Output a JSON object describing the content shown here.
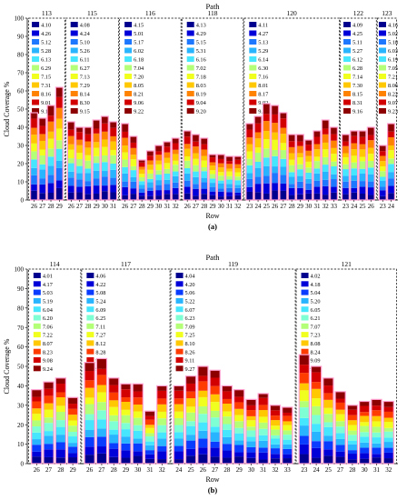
{
  "colors": {
    "levels": [
      "#00008f",
      "#0000d9",
      "#0a3cff",
      "#1e78ff",
      "#28b4ff",
      "#46e6ff",
      "#7fffd4",
      "#b4ff78",
      "#f0ff1e",
      "#ffc800",
      "#ff8200",
      "#ff3c00",
      "#d20000",
      "#8c0000"
    ]
  },
  "chart_data": [
    {
      "type": "bar",
      "stacked": true,
      "panel_label": "(a)",
      "title": "Path",
      "xlabel": "Row",
      "ylabel": "Cloud Coverage %",
      "ylim": [
        0,
        100
      ],
      "yticks": [
        0,
        10,
        20,
        30,
        40,
        50,
        60,
        70,
        80,
        90,
        100
      ],
      "groups": [
        {
          "path": "113",
          "rows": [
            "26",
            "27",
            "28",
            "29"
          ],
          "legend": [
            "4.10",
            "4.26",
            "5.12",
            "5.28",
            "6.13",
            "6.29",
            "7.15",
            "7.31",
            "8.16",
            "9.01",
            "9.17"
          ],
          "totals": [
            48,
            45,
            52,
            62
          ]
        },
        {
          "path": "115",
          "rows": [
            "26",
            "27",
            "28",
            "29",
            "30",
            "31"
          ],
          "legend": [
            "4.08",
            "4.24",
            "5.10",
            "5.26",
            "6.11",
            "6.27",
            "7.13",
            "7.29",
            "8.14",
            "8.30",
            "9.15"
          ],
          "totals": [
            43,
            40,
            40,
            44,
            46,
            43
          ]
        },
        {
          "path": "116",
          "rows": [
            "26",
            "27",
            "28",
            "29",
            "30",
            "31",
            "32"
          ],
          "legend": [
            "4.15",
            "5.01",
            "5.17",
            "6.02",
            "6.18",
            "7.04",
            "7.20",
            "8.05",
            "8.21",
            "9.06",
            "9.22"
          ],
          "totals": [
            42,
            35,
            22,
            27,
            30,
            32,
            34
          ]
        },
        {
          "path": "118",
          "rows": [
            "26",
            "27",
            "28",
            "29",
            "30",
            "31",
            "32"
          ],
          "legend": [
            "4.13",
            "4.29",
            "5.15",
            "5.31",
            "6.16",
            "7.02",
            "7.18",
            "8.03",
            "8.19",
            "9.04",
            "9.20"
          ],
          "totals": [
            38,
            36,
            34,
            25,
            25,
            24,
            24
          ]
        },
        {
          "path": "120",
          "rows": [
            "23",
            "24",
            "25",
            "26",
            "27",
            "28",
            "29",
            "30",
            "31",
            "32",
            "33"
          ],
          "legend": [
            "4.11",
            "4.27",
            "5.13",
            "5.29",
            "6.14",
            "6.30",
            "7.16",
            "8.01",
            "8.17",
            "9.02",
            "9.18"
          ],
          "totals": [
            42,
            46,
            53,
            52,
            48,
            36,
            36,
            33,
            38,
            44,
            40
          ]
        },
        {
          "path": "122",
          "rows": [
            "23",
            "24",
            "25",
            "26"
          ],
          "legend": [
            "4.09",
            "4.25",
            "5.11",
            "5.27",
            "6.12",
            "6.28",
            "7.14",
            "7.30",
            "8.15",
            "8.31",
            "9.16"
          ],
          "totals": [
            36,
            38,
            38,
            40
          ]
        },
        {
          "path": "123",
          "rows": [
            "23",
            "24"
          ],
          "legend": [
            "4.16",
            "5.02",
            "5.18",
            "6.03",
            "6.19",
            "7.05",
            "7.21",
            "8.06",
            "8.22",
            "9.07",
            "9.23"
          ],
          "totals": [
            30,
            42
          ]
        }
      ]
    },
    {
      "type": "bar",
      "stacked": true,
      "panel_label": "(b)",
      "title": "Path",
      "xlabel": "Row",
      "ylabel": "Cloud Coverage %",
      "ylim": [
        0,
        100
      ],
      "yticks": [
        0,
        10,
        20,
        30,
        40,
        50,
        60,
        70,
        80,
        90,
        100
      ],
      "groups": [
        {
          "path": "114",
          "rows": [
            "26",
            "27",
            "28",
            "29"
          ],
          "legend": [
            "4.01",
            "4.17",
            "5.03",
            "5.19",
            "6.04",
            "6.20",
            "7.06",
            "7.22",
            "8.07",
            "8.23",
            "9.08",
            "9.24"
          ],
          "totals": [
            38,
            42,
            44,
            34
          ]
        },
        {
          "path": "117",
          "rows": [
            "26",
            "27",
            "28",
            "29",
            "30",
            "31",
            "32"
          ],
          "legend": [
            "4.06",
            "4.22",
            "5.08",
            "5.24",
            "6.09",
            "6.25",
            "7.11",
            "7.27",
            "8.12",
            "8.28",
            "9.13",
            "9.29"
          ],
          "totals": [
            52,
            54,
            44,
            41,
            41,
            27,
            40
          ]
        },
        {
          "path": "119",
          "rows": [
            "24",
            "25",
            "26",
            "27",
            "28",
            "29",
            "30",
            "31",
            "32",
            "33"
          ],
          "legend": [
            "4.04",
            "4.20",
            "5.06",
            "5.22",
            "6.07",
            "6.23",
            "7.09",
            "7.25",
            "8.10",
            "8.26",
            "9.11",
            "9.27"
          ],
          "totals": [
            40,
            45,
            50,
            48,
            40,
            38,
            33,
            36,
            30,
            29
          ]
        },
        {
          "path": "121",
          "rows": [
            "23",
            "24",
            "25",
            "27",
            "28",
            "30",
            "31",
            "32"
          ],
          "legend": [
            "4.02",
            "4.18",
            "5.04",
            "5.20",
            "6.05",
            "6.21",
            "7.07",
            "7.23",
            "8.08",
            "8.24",
            "9.09",
            "9.25"
          ],
          "totals": [
            56,
            50,
            44,
            37,
            30,
            32,
            33,
            32
          ]
        }
      ]
    }
  ]
}
